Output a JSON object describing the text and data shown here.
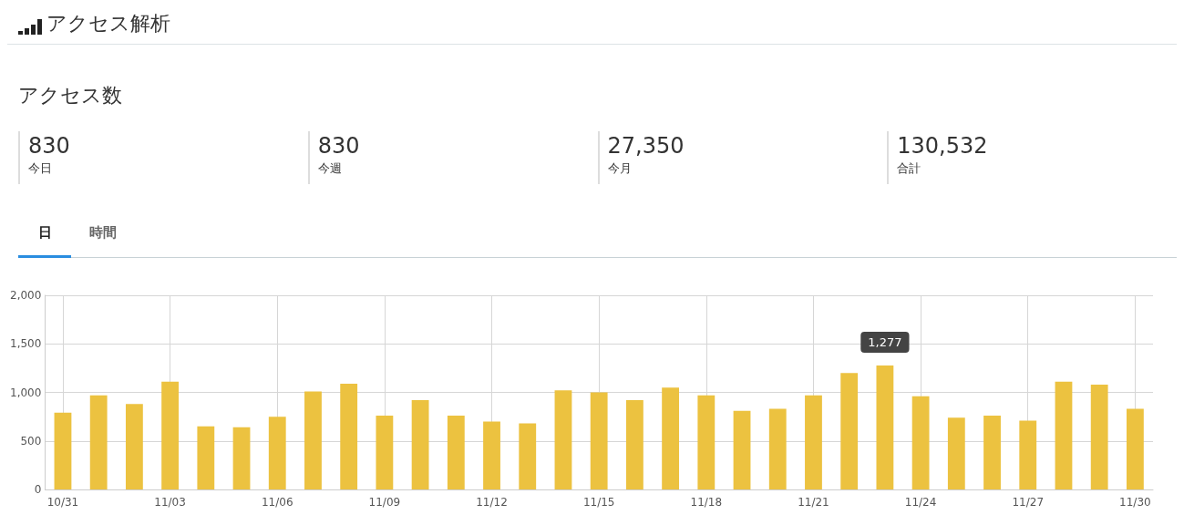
{
  "chart_data": [
    {
      "type": "other",
      "title": "アクセス解析",
      "subtitle": "アクセス数",
      "annotations": [
        "830",
        "今日",
        "830",
        "今週",
        "27,350",
        "今月",
        "130,532",
        "合計"
      ]
    },
    {
      "type": "bar",
      "categories": [
        "10/31",
        null,
        null,
        "11/03",
        null,
        null,
        "11/06",
        null,
        null,
        "11/09",
        null,
        null,
        "11/12",
        null,
        null,
        "11/15",
        null,
        null,
        "11/18",
        null,
        null,
        "11/21",
        null,
        null,
        "11/24",
        null,
        null,
        "11/27",
        null,
        null,
        "11/30"
      ],
      "values": [
        790,
        970,
        880,
        1110,
        650,
        640,
        750,
        1010,
        1090,
        760,
        920,
        760,
        700,
        680,
        1020,
        1000,
        920,
        1050,
        970,
        810,
        830,
        970,
        1200,
        1277,
        960,
        740,
        760,
        710,
        1110,
        1080,
        830
      ],
      "value_labels": [
        null,
        null,
        null,
        null,
        null,
        null,
        null,
        null,
        null,
        null,
        null,
        null,
        null,
        null,
        null,
        null,
        null,
        null,
        null,
        null,
        null,
        null,
        null,
        "1,277",
        null,
        null,
        null,
        null,
        null,
        null,
        null
      ],
      "color": "#ecc240",
      "ylim": [
        0,
        2000
      ],
      "yticks": [
        {
          "value": 0,
          "label": "0"
        },
        {
          "value": 500,
          "label": "500"
        },
        {
          "value": 1000,
          "label": "1,000"
        },
        {
          "value": 1500,
          "label": "1,500"
        },
        {
          "value": 2000,
          "label": "2,000"
        }
      ],
      "grid": true,
      "annotations": [
        "日",
        "時間"
      ]
    }
  ]
}
